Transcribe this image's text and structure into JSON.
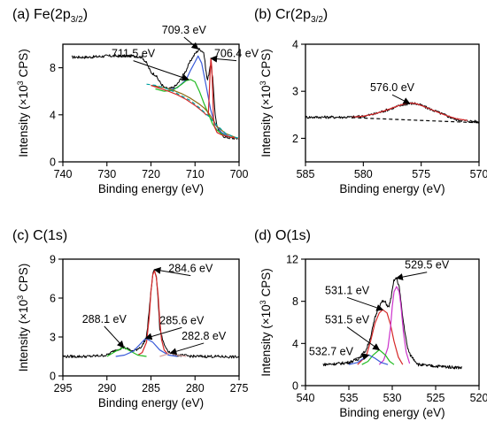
{
  "chart_data": [
    {
      "type": "line",
      "title": "(a) Fe(2p3/2)",
      "title_parts": {
        "prefix": "(a) Fe(2p",
        "sub": "3/2",
        "suffix": ")"
      },
      "xlabel": "Binding energy (eV)",
      "ylabel": {
        "pre": "Intensity (×10",
        "sup": "3",
        "post": " CPS)"
      },
      "xlim": [
        740,
        700
      ],
      "ylim": [
        0,
        10
      ],
      "xticks": [
        "740",
        "730",
        "720",
        "710",
        "700"
      ],
      "yticks": [
        "0",
        "4",
        "8"
      ],
      "x_reversed": true,
      "series": [
        {
          "color": "#000000",
          "style": "noisy",
          "x": [
            738,
            734,
            730,
            727,
            724,
            722,
            721,
            720,
            719,
            718,
            717,
            716,
            715,
            714,
            713,
            712,
            711,
            710,
            709,
            708,
            707.6,
            707.2,
            706.9,
            706.5,
            706.0,
            705.5,
            705,
            704,
            703,
            702,
            701,
            700
          ],
          "y": [
            8.9,
            8.9,
            9.0,
            9.0,
            9.0,
            8.9,
            8.4,
            7.6,
            7.4,
            6.8,
            6.3,
            6.2,
            6.3,
            6.6,
            7.2,
            7.8,
            8.6,
            9.2,
            9.6,
            9.3,
            8.0,
            6.9,
            7.4,
            8.4,
            7.2,
            4.3,
            3.0,
            2.3,
            2.1,
            2.05,
            2.0,
            2.0
          ]
        },
        {
          "color": "#3a5bd9",
          "x": [
            716,
            714,
            712,
            711,
            710,
            709.3,
            708.5,
            707.5,
            706.5,
            705.5,
            704,
            702,
            700
          ],
          "y": [
            6.1,
            6.3,
            7.0,
            7.8,
            8.5,
            9.0,
            8.4,
            6.5,
            4.5,
            3.2,
            2.5,
            2.1,
            2.0
          ]
        },
        {
          "color": "#22bb22",
          "x": [
            719,
            717,
            715,
            713,
            712,
            711,
            710,
            709,
            708,
            707,
            706,
            705,
            704,
            703,
            702,
            700
          ],
          "y": [
            6.2,
            6.0,
            6.1,
            6.6,
            6.9,
            7.0,
            6.8,
            6.0,
            5.0,
            4.1,
            3.2,
            2.7,
            2.4,
            2.2,
            2.1,
            2.0
          ]
        },
        {
          "color": "#8a6a10",
          "x": [
            720,
            717,
            715,
            713,
            711,
            709,
            708,
            707,
            706,
            705,
            703,
            701
          ],
          "y": [
            6.5,
            6.3,
            6.1,
            5.8,
            5.4,
            4.9,
            4.6,
            4.2,
            3.6,
            3.0,
            2.4,
            2.1
          ]
        },
        {
          "color": "#d62728",
          "x": [
            720,
            716,
            714,
            712,
            710,
            708,
            707.5,
            707,
            706.8,
            706.6,
            706.4,
            706.2,
            706.0,
            705.8,
            705.6,
            705,
            704,
            702,
            700
          ],
          "y": [
            6.5,
            6.0,
            5.7,
            5.3,
            4.8,
            4.2,
            4.0,
            4.0,
            5.5,
            7.5,
            8.8,
            8.0,
            6.0,
            3.8,
            3.0,
            2.5,
            2.3,
            2.1,
            2.0
          ]
        },
        {
          "color": "#00a0a0",
          "dashed": true,
          "x": [
            721,
            719,
            717,
            715,
            713,
            711,
            709,
            707,
            705,
            703,
            701,
            700
          ],
          "y": [
            6.6,
            6.5,
            6.3,
            6.0,
            5.6,
            5.2,
            4.6,
            3.9,
            3.1,
            2.4,
            2.1,
            2.0
          ]
        }
      ],
      "annotations": [
        {
          "text": "709.3 eV",
          "x": 709.3,
          "y": 9.6
        },
        {
          "text": "711.5 eV",
          "x": 711.5,
          "y": 7.0
        },
        {
          "text": "706.4 eV",
          "x": 706.4,
          "y": 8.8
        }
      ]
    },
    {
      "type": "line",
      "title": "(b) Cr(2p3/2)",
      "title_parts": {
        "prefix": "(b) Cr(2p",
        "sub": "3/2",
        "suffix": ")"
      },
      "xlabel": "Binding energy (eV)",
      "ylabel": {
        "pre": "Intensity (×10",
        "sup": "3",
        "post": " CPS)"
      },
      "xlim": [
        585,
        570
      ],
      "ylim": [
        1.5,
        4
      ],
      "xticks": [
        "585",
        "580",
        "575",
        "570"
      ],
      "yticks": [
        "2",
        "3",
        "4"
      ],
      "x_reversed": true,
      "series": [
        {
          "color": "#000000",
          "style": "noisy",
          "x": [
            585,
            583,
            581,
            580,
            579,
            578,
            577,
            576.5,
            576,
            575.5,
            575,
            574,
            573,
            572,
            571,
            570
          ],
          "y": [
            2.45,
            2.45,
            2.45,
            2.47,
            2.52,
            2.6,
            2.68,
            2.72,
            2.74,
            2.74,
            2.7,
            2.6,
            2.5,
            2.4,
            2.37,
            2.35
          ]
        },
        {
          "color": "#d62728",
          "x": [
            581,
            580,
            579,
            578,
            577,
            576.5,
            576,
            575.5,
            575,
            574,
            573,
            572,
            571
          ],
          "y": [
            2.45,
            2.47,
            2.52,
            2.6,
            2.69,
            2.73,
            2.75,
            2.74,
            2.7,
            2.6,
            2.5,
            2.42,
            2.38
          ]
        },
        {
          "color": "#000000",
          "dashed": true,
          "x": [
            581,
            570
          ],
          "y": [
            2.44,
            2.33
          ]
        }
      ],
      "annotations": [
        {
          "text": "576.0 eV",
          "x": 576.0,
          "y": 2.74
        }
      ]
    },
    {
      "type": "line",
      "title": "(c) C(1s)",
      "title_parts": {
        "prefix": "(c) C(1s)",
        "sub": "",
        "suffix": ""
      },
      "xlabel": "Binding energy (eV)",
      "ylabel": {
        "pre": "Intensity (×10",
        "sup": "3",
        "post": " CPS)"
      },
      "xlim": [
        295,
        275
      ],
      "ylim": [
        0,
        9
      ],
      "xticks": [
        "295",
        "290",
        "285",
        "280",
        "275"
      ],
      "yticks": [
        "0",
        "3",
        "6",
        "9"
      ],
      "x_reversed": true,
      "series": [
        {
          "color": "#000000",
          "style": "noisy",
          "x": [
            295,
            292,
            290,
            289,
            288.1,
            287,
            286,
            285.5,
            285,
            284.8,
            284.6,
            284.4,
            284.2,
            284,
            283.5,
            283,
            282.8,
            282,
            280,
            278,
            275
          ],
          "y": [
            1.5,
            1.5,
            1.6,
            2.0,
            2.2,
            1.9,
            2.3,
            3.0,
            6.5,
            7.8,
            8.2,
            7.7,
            6.0,
            3.6,
            2.4,
            1.9,
            1.8,
            1.6,
            1.5,
            1.5,
            1.45
          ]
        },
        {
          "color": "#d62728",
          "x": [
            286.5,
            286,
            285.5,
            285.2,
            285,
            284.8,
            284.6,
            284.4,
            284.2,
            284,
            283.8,
            283.5,
            283
          ],
          "y": [
            1.6,
            1.8,
            2.6,
            4.5,
            6.5,
            7.8,
            8.1,
            7.6,
            6.3,
            4.3,
            2.8,
            2.0,
            1.6
          ]
        },
        {
          "color": "#22bb22",
          "x": [
            290,
            289,
            288.1,
            287.3,
            286.5,
            285.5
          ],
          "y": [
            1.5,
            1.9,
            2.2,
            1.9,
            1.6,
            1.5
          ]
        },
        {
          "color": "#3a5bd9",
          "x": [
            289,
            288,
            287,
            286.3,
            285.6,
            284.8,
            284,
            283,
            282
          ],
          "y": [
            1.5,
            1.6,
            1.9,
            2.4,
            2.9,
            2.6,
            2.0,
            1.6,
            1.5
          ]
        },
        {
          "color": "#d6a0a0",
          "x": [
            284,
            283.5,
            282.8,
            282,
            281
          ],
          "y": [
            1.5,
            1.6,
            1.75,
            1.6,
            1.5
          ]
        }
      ],
      "annotations": [
        {
          "text": "284.6 eV",
          "x": 284.6,
          "y": 8.2
        },
        {
          "text": "288.1 eV",
          "x": 288.1,
          "y": 2.2
        },
        {
          "text": "285.6 eV",
          "x": 285.6,
          "y": 2.9
        },
        {
          "text": "282.8 eV",
          "x": 282.8,
          "y": 1.75
        }
      ]
    },
    {
      "type": "line",
      "title": "(d) O(1s)",
      "title_parts": {
        "prefix": "(d) O(1s)",
        "sub": "",
        "suffix": ""
      },
      "xlabel": "Binding energy (eV)",
      "ylabel": {
        "pre": "Intensity (×10",
        "sup": "3",
        "post": " CPS)"
      },
      "xlim": [
        540,
        520
      ],
      "ylim": [
        0,
        12
      ],
      "xticks": [
        "540",
        "535",
        "530",
        "525",
        "520"
      ],
      "yticks": [
        "0",
        "4",
        "8",
        "12"
      ],
      "x_reversed": true,
      "series": [
        {
          "color": "#000000",
          "style": "noisy",
          "x": [
            538,
            536,
            535,
            534,
            533.5,
            533,
            532.5,
            532,
            531.5,
            531.1,
            530.8,
            530.4,
            530.1,
            529.8,
            529.5,
            529.2,
            528.8,
            528.3,
            528,
            527,
            526,
            524,
            522
          ],
          "y": [
            2.0,
            2.1,
            2.2,
            2.5,
            2.9,
            3.4,
            4.6,
            6.4,
            7.6,
            8.0,
            7.9,
            7.4,
            8.5,
            10.0,
            10.2,
            9.4,
            6.5,
            3.8,
            3.0,
            2.0,
            1.9,
            1.8,
            1.7
          ]
        },
        {
          "color": "#d62728",
          "x": [
            534,
            533,
            532.5,
            532,
            531.5,
            531.1,
            530.6,
            530.2,
            529.8,
            529.3,
            528.8
          ],
          "y": [
            2.0,
            2.8,
            4.2,
            5.9,
            6.9,
            7.2,
            6.9,
            5.8,
            4.2,
            2.7,
            2.0
          ]
        },
        {
          "color": "#cc33cc",
          "x": [
            531.5,
            531,
            530.5,
            530.2,
            530,
            529.8,
            529.5,
            529.2,
            529,
            528.7,
            528.4,
            528
          ],
          "y": [
            2.0,
            2.4,
            3.6,
            5.5,
            7.5,
            8.9,
            9.4,
            8.9,
            7.6,
            5.0,
            3.2,
            2.1
          ]
        },
        {
          "color": "#22bb22",
          "x": [
            533.5,
            532.8,
            532.2,
            531.5,
            530.8,
            530.3,
            529.8
          ],
          "y": [
            2.0,
            2.3,
            2.9,
            3.4,
            2.9,
            2.3,
            2.0
          ]
        },
        {
          "color": "#3a5bd9",
          "x": [
            535,
            534,
            533.3,
            532.7,
            532,
            531.3,
            530.5
          ],
          "y": [
            2.0,
            2.2,
            2.6,
            2.9,
            2.6,
            2.2,
            2.0
          ]
        }
      ],
      "annotations": [
        {
          "text": "529.5 eV",
          "x": 529.5,
          "y": 10.2
        },
        {
          "text": "531.1 eV",
          "x": 531.1,
          "y": 7.2
        },
        {
          "text": "531.5 eV",
          "x": 531.5,
          "y": 3.4
        },
        {
          "text": "532.7 eV",
          "x": 532.7,
          "y": 2.9
        }
      ]
    }
  ]
}
